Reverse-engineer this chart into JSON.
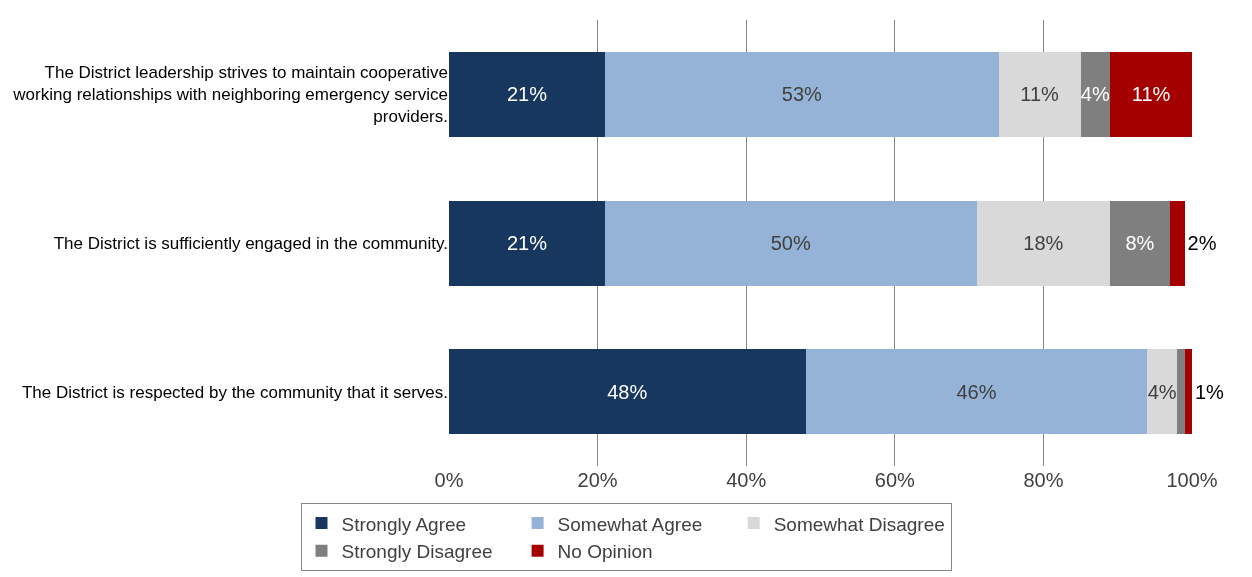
{
  "chart_data": {
    "type": "bar",
    "orientation": "horizontal",
    "stacked": true,
    "categories": [
      "The District leadership strives to maintain cooperative working relationships with neighboring emergency service providers.",
      "The District is sufficiently engaged in the community.",
      "The District is respected by the community that it serves."
    ],
    "series": [
      {
        "name": "Strongly Agree",
        "color": "#17375e",
        "values": [
          21,
          21,
          48
        ],
        "value_labels": [
          "21%",
          "21%",
          "48%"
        ]
      },
      {
        "name": "Somewhat Agree",
        "color": "#95b3d7",
        "values": [
          53,
          50,
          46
        ],
        "value_labels": [
          "53%",
          "50%",
          "46%"
        ]
      },
      {
        "name": "Somewhat Disagree",
        "color": "#d9d9d9",
        "values": [
          11,
          18,
          4
        ],
        "value_labels": [
          "11%",
          "18%",
          "4%"
        ]
      },
      {
        "name": "Strongly Disagree",
        "color": "#7f7f7f",
        "values": [
          4,
          8,
          1
        ],
        "value_labels": [
          "4%",
          "8%",
          null
        ]
      },
      {
        "name": "No Opinion",
        "color": "#a50000",
        "values": [
          11,
          2,
          1
        ],
        "value_labels": [
          "11%",
          "2%",
          "1%"
        ]
      }
    ],
    "xlim": [
      0,
      100
    ],
    "xticks": [
      {
        "value": 0,
        "label": "0%"
      },
      {
        "value": 20,
        "label": "20%"
      },
      {
        "value": 40,
        "label": "40%"
      },
      {
        "value": 60,
        "label": "60%"
      },
      {
        "value": 80,
        "label": "80%"
      },
      {
        "value": 100,
        "label": "100%"
      }
    ],
    "grid": "x",
    "legend": "bottom"
  }
}
